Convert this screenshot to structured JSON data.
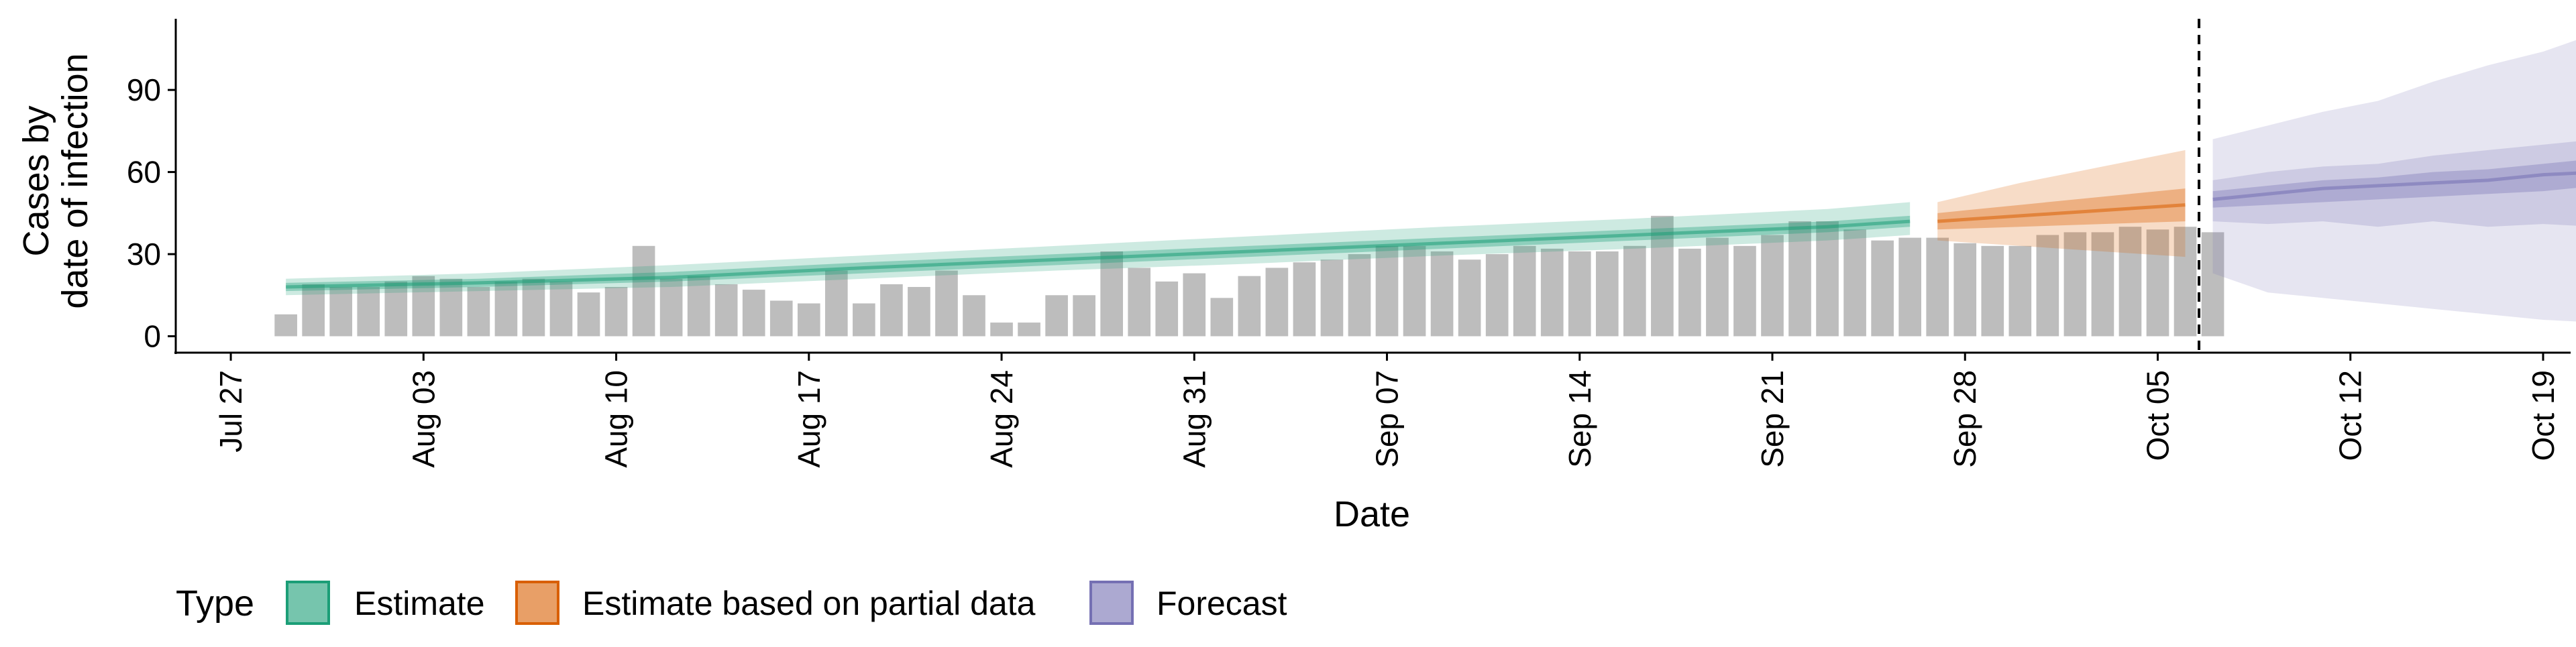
{
  "chart_data": {
    "type": "bar",
    "title": "",
    "xlabel": "Date",
    "ylabel_lines": [
      "Cases by",
      "date of infection"
    ],
    "ylim": [
      -6,
      116
    ],
    "y_ticks": [
      0,
      30,
      60,
      90
    ],
    "y_tick_labels": [
      "0",
      "30",
      "60",
      "90"
    ],
    "x_range_days": [
      -2,
      85
    ],
    "x_ticks_days": [
      0,
      7,
      14,
      21,
      28,
      35,
      42,
      49,
      56,
      63,
      70,
      77,
      84
    ],
    "x_tick_labels": [
      "Jul 27",
      "Aug 03",
      "Aug 10",
      "Aug 17",
      "Aug 24",
      "Aug 31",
      "Sep 07",
      "Sep 14",
      "Sep 21",
      "Sep 28",
      "Oct 05",
      "Oct 12",
      "Oct 19"
    ],
    "reference_date_label": "Oct 06",
    "reference_line_day": 71.5,
    "grid": false,
    "colors": {
      "bars": "#bdbdbd",
      "estimate": "#1b9e77",
      "partial": "#d95f02",
      "forecast": "#7570b3",
      "reference_line": "#000000"
    },
    "observed_cases": {
      "start_day": 2,
      "values": [
        8,
        19,
        18,
        18,
        20,
        22,
        21,
        18,
        20,
        21,
        20,
        16,
        18,
        33,
        21,
        22,
        19,
        17,
        13,
        12,
        24,
        12,
        19,
        18,
        24,
        15,
        5,
        5,
        15,
        15,
        31,
        25,
        20,
        23,
        14,
        22,
        25,
        27,
        28,
        30,
        33,
        33,
        31,
        28,
        30,
        33,
        32,
        31,
        31,
        33,
        44,
        32,
        36,
        33,
        37,
        42,
        42,
        39,
        35,
        36,
        36,
        34,
        33,
        33,
        37,
        38,
        38,
        40,
        39,
        40,
        38
      ]
    },
    "series": [
      {
        "name": "Estimate",
        "x": [
          2,
          9,
          16,
          23,
          30,
          37,
          44,
          51,
          58,
          61
        ],
        "median": [
          18,
          19.5,
          21.5,
          25,
          28,
          31,
          34,
          37,
          40,
          42
        ],
        "inner_lower": [
          16.5,
          18,
          20,
          23,
          26,
          29,
          32,
          35,
          38,
          40
        ],
        "inner_upper": [
          19.5,
          21,
          23.5,
          27,
          30,
          33,
          36,
          39,
          42,
          44
        ],
        "outer_lower": [
          15,
          16.5,
          18,
          21,
          24,
          26.5,
          29.5,
          32,
          35,
          37
        ],
        "outer_upper": [
          21,
          23,
          26,
          29.5,
          33,
          36.5,
          40,
          43,
          46.5,
          49
        ]
      },
      {
        "name": "Estimate based on partial data",
        "x": [
          62,
          65,
          68,
          71
        ],
        "median": [
          42,
          44,
          46,
          48
        ],
        "inner_lower": [
          39,
          40,
          41,
          42
        ],
        "inner_upper": [
          45,
          48,
          51,
          54
        ],
        "outer_lower": [
          35,
          33,
          31,
          29
        ],
        "outer_upper": [
          49,
          56,
          62,
          68
        ]
      },
      {
        "name": "Forecast",
        "x": [
          72,
          74,
          76,
          78,
          80,
          82,
          84,
          86
        ],
        "median": [
          50,
          52,
          54,
          55,
          56,
          57,
          59,
          60
        ],
        "inner_lower": [
          47,
          48,
          49,
          50,
          51,
          52,
          53,
          55
        ],
        "inner_upper": [
          53,
          55,
          57,
          58,
          60,
          61,
          63,
          65
        ],
        "outer_lower": [
          42,
          41,
          42,
          40,
          42,
          40,
          41,
          40
        ],
        "outer_upper": [
          57,
          60,
          62,
          63,
          66,
          68,
          70,
          72
        ],
        "fan_lower": [
          23,
          16,
          14,
          12,
          10,
          8,
          6,
          5
        ],
        "fan_upper": [
          72,
          77,
          82,
          86,
          93,
          99,
          104,
          111
        ]
      }
    ],
    "legend": {
      "title": "Type",
      "position": "bottom-left",
      "entries": [
        {
          "label": "Estimate",
          "color": "#1b9e77"
        },
        {
          "label": "Estimate based on partial data",
          "color": "#d95f02"
        },
        {
          "label": "Forecast",
          "color": "#7570b3"
        }
      ]
    }
  }
}
